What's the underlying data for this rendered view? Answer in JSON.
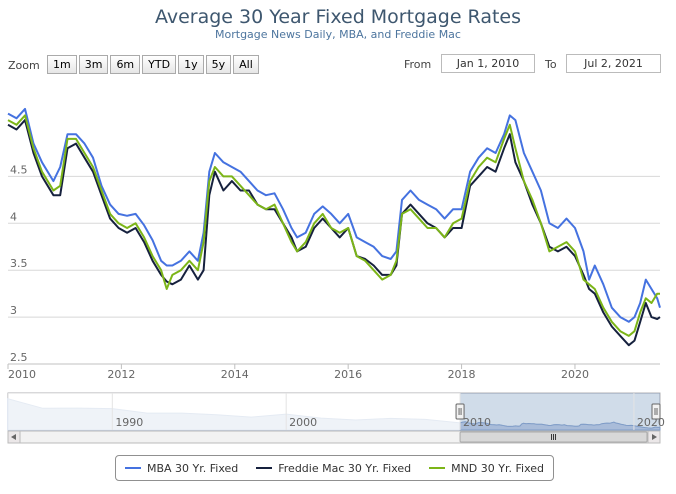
{
  "chart_data": {
    "type": "line",
    "title": "Average 30 Year Fixed Mortgage Rates",
    "subtitle": "Mortgage News Daily, MBA, and Freddie Mac",
    "xlabel": "",
    "ylabel": "",
    "xlim": [
      2010.0,
      2021.5
    ],
    "ylim": [
      2.5,
      5.4
    ],
    "grid": "y",
    "x_ticks": [
      {
        "v": 2010,
        "label": "2010"
      },
      {
        "v": 2012,
        "label": "2012"
      },
      {
        "v": 2014,
        "label": "2014"
      },
      {
        "v": 2016,
        "label": "2016"
      },
      {
        "v": 2018,
        "label": "2018"
      },
      {
        "v": 2020,
        "label": "2020"
      }
    ],
    "y_ticks": [
      {
        "v": 2.5,
        "label": "2.5"
      },
      {
        "v": 3.0,
        "label": "3"
      },
      {
        "v": 3.5,
        "label": "3.5"
      },
      {
        "v": 4.0,
        "label": "4"
      },
      {
        "v": 4.5,
        "label": "4.5"
      }
    ],
    "legend_position": "bottom",
    "series": [
      {
        "name": "MBA 30 Yr. Fixed",
        "color": "#4572e0",
        "points": [
          [
            2010.0,
            5.17
          ],
          [
            2010.15,
            5.12
          ],
          [
            2010.3,
            5.22
          ],
          [
            2010.45,
            4.85
          ],
          [
            2010.6,
            4.65
          ],
          [
            2010.8,
            4.45
          ],
          [
            2010.92,
            4.6
          ],
          [
            2011.05,
            4.95
          ],
          [
            2011.2,
            4.95
          ],
          [
            2011.35,
            4.85
          ],
          [
            2011.5,
            4.7
          ],
          [
            2011.65,
            4.4
          ],
          [
            2011.8,
            4.2
          ],
          [
            2011.95,
            4.1
          ],
          [
            2012.1,
            4.08
          ],
          [
            2012.25,
            4.1
          ],
          [
            2012.4,
            3.98
          ],
          [
            2012.55,
            3.82
          ],
          [
            2012.7,
            3.6
          ],
          [
            2012.8,
            3.55
          ],
          [
            2012.9,
            3.55
          ],
          [
            2013.05,
            3.6
          ],
          [
            2013.2,
            3.7
          ],
          [
            2013.35,
            3.6
          ],
          [
            2013.45,
            3.9
          ],
          [
            2013.55,
            4.55
          ],
          [
            2013.65,
            4.75
          ],
          [
            2013.8,
            4.65
          ],
          [
            2013.95,
            4.6
          ],
          [
            2014.1,
            4.55
          ],
          [
            2014.25,
            4.45
          ],
          [
            2014.4,
            4.35
          ],
          [
            2014.55,
            4.3
          ],
          [
            2014.7,
            4.32
          ],
          [
            2014.85,
            4.15
          ],
          [
            2015.0,
            3.95
          ],
          [
            2015.1,
            3.85
          ],
          [
            2015.25,
            3.9
          ],
          [
            2015.4,
            4.1
          ],
          [
            2015.55,
            4.18
          ],
          [
            2015.7,
            4.1
          ],
          [
            2015.85,
            4.0
          ],
          [
            2016.0,
            4.1
          ],
          [
            2016.15,
            3.85
          ],
          [
            2016.3,
            3.8
          ],
          [
            2016.45,
            3.75
          ],
          [
            2016.6,
            3.65
          ],
          [
            2016.75,
            3.62
          ],
          [
            2016.85,
            3.7
          ],
          [
            2016.95,
            4.25
          ],
          [
            2017.1,
            4.35
          ],
          [
            2017.25,
            4.25
          ],
          [
            2017.4,
            4.2
          ],
          [
            2017.55,
            4.15
          ],
          [
            2017.7,
            4.05
          ],
          [
            2017.85,
            4.15
          ],
          [
            2018.0,
            4.15
          ],
          [
            2018.15,
            4.55
          ],
          [
            2018.3,
            4.7
          ],
          [
            2018.45,
            4.8
          ],
          [
            2018.6,
            4.75
          ],
          [
            2018.75,
            4.95
          ],
          [
            2018.85,
            5.15
          ],
          [
            2018.95,
            5.1
          ],
          [
            2019.1,
            4.75
          ],
          [
            2019.25,
            4.55
          ],
          [
            2019.4,
            4.35
          ],
          [
            2019.55,
            4.0
          ],
          [
            2019.7,
            3.95
          ],
          [
            2019.85,
            4.05
          ],
          [
            2020.0,
            3.95
          ],
          [
            2020.15,
            3.7
          ],
          [
            2020.25,
            3.4
          ],
          [
            2020.35,
            3.55
          ],
          [
            2020.5,
            3.35
          ],
          [
            2020.65,
            3.1
          ],
          [
            2020.8,
            3.0
          ],
          [
            2020.95,
            2.95
          ],
          [
            2021.05,
            3.0
          ],
          [
            2021.15,
            3.15
          ],
          [
            2021.25,
            3.4
          ],
          [
            2021.35,
            3.3
          ],
          [
            2021.45,
            3.2
          ],
          [
            2021.5,
            3.1
          ]
        ]
      },
      {
        "name": "Freddie Mac 30 Yr. Fixed",
        "color": "#16213e",
        "points": [
          [
            2010.0,
            5.05
          ],
          [
            2010.15,
            5.0
          ],
          [
            2010.3,
            5.1
          ],
          [
            2010.45,
            4.75
          ],
          [
            2010.6,
            4.5
          ],
          [
            2010.8,
            4.3
          ],
          [
            2010.92,
            4.3
          ],
          [
            2011.05,
            4.8
          ],
          [
            2011.2,
            4.85
          ],
          [
            2011.35,
            4.7
          ],
          [
            2011.5,
            4.55
          ],
          [
            2011.65,
            4.3
          ],
          [
            2011.8,
            4.05
          ],
          [
            2011.95,
            3.95
          ],
          [
            2012.1,
            3.9
          ],
          [
            2012.25,
            3.95
          ],
          [
            2012.4,
            3.8
          ],
          [
            2012.55,
            3.6
          ],
          [
            2012.7,
            3.45
          ],
          [
            2012.8,
            3.38
          ],
          [
            2012.9,
            3.35
          ],
          [
            2013.05,
            3.4
          ],
          [
            2013.2,
            3.55
          ],
          [
            2013.35,
            3.4
          ],
          [
            2013.45,
            3.5
          ],
          [
            2013.55,
            4.3
          ],
          [
            2013.65,
            4.55
          ],
          [
            2013.8,
            4.35
          ],
          [
            2013.95,
            4.45
          ],
          [
            2014.1,
            4.35
          ],
          [
            2014.25,
            4.35
          ],
          [
            2014.4,
            4.2
          ],
          [
            2014.55,
            4.15
          ],
          [
            2014.7,
            4.15
          ],
          [
            2014.85,
            4.0
          ],
          [
            2015.0,
            3.85
          ],
          [
            2015.1,
            3.7
          ],
          [
            2015.25,
            3.75
          ],
          [
            2015.4,
            3.95
          ],
          [
            2015.55,
            4.05
          ],
          [
            2015.7,
            3.95
          ],
          [
            2015.85,
            3.85
          ],
          [
            2016.0,
            3.95
          ],
          [
            2016.15,
            3.65
          ],
          [
            2016.3,
            3.62
          ],
          [
            2016.45,
            3.55
          ],
          [
            2016.6,
            3.45
          ],
          [
            2016.75,
            3.45
          ],
          [
            2016.85,
            3.55
          ],
          [
            2016.95,
            4.1
          ],
          [
            2017.1,
            4.2
          ],
          [
            2017.25,
            4.1
          ],
          [
            2017.4,
            4.0
          ],
          [
            2017.55,
            3.95
          ],
          [
            2017.7,
            3.85
          ],
          [
            2017.85,
            3.95
          ],
          [
            2018.0,
            3.95
          ],
          [
            2018.15,
            4.4
          ],
          [
            2018.3,
            4.5
          ],
          [
            2018.45,
            4.6
          ],
          [
            2018.6,
            4.55
          ],
          [
            2018.75,
            4.8
          ],
          [
            2018.85,
            4.95
          ],
          [
            2018.95,
            4.65
          ],
          [
            2019.1,
            4.45
          ],
          [
            2019.25,
            4.2
          ],
          [
            2019.4,
            4.0
          ],
          [
            2019.55,
            3.75
          ],
          [
            2019.7,
            3.7
          ],
          [
            2019.85,
            3.75
          ],
          [
            2020.0,
            3.65
          ],
          [
            2020.15,
            3.45
          ],
          [
            2020.25,
            3.3
          ],
          [
            2020.35,
            3.25
          ],
          [
            2020.5,
            3.05
          ],
          [
            2020.65,
            2.9
          ],
          [
            2020.8,
            2.8
          ],
          [
            2020.95,
            2.7
          ],
          [
            2021.05,
            2.75
          ],
          [
            2021.15,
            2.95
          ],
          [
            2021.25,
            3.15
          ],
          [
            2021.35,
            3.0
          ],
          [
            2021.45,
            2.98
          ],
          [
            2021.5,
            3.0
          ]
        ]
      },
      {
        "name": "MND 30 Yr. Fixed",
        "color": "#7cb518",
        "points": [
          [
            2010.0,
            5.1
          ],
          [
            2010.15,
            5.05
          ],
          [
            2010.3,
            5.15
          ],
          [
            2010.45,
            4.8
          ],
          [
            2010.6,
            4.55
          ],
          [
            2010.8,
            4.35
          ],
          [
            2010.92,
            4.4
          ],
          [
            2011.05,
            4.9
          ],
          [
            2011.2,
            4.9
          ],
          [
            2011.35,
            4.75
          ],
          [
            2011.5,
            4.6
          ],
          [
            2011.65,
            4.35
          ],
          [
            2011.8,
            4.1
          ],
          [
            2011.95,
            4.0
          ],
          [
            2012.1,
            3.95
          ],
          [
            2012.25,
            4.0
          ],
          [
            2012.4,
            3.85
          ],
          [
            2012.55,
            3.65
          ],
          [
            2012.7,
            3.5
          ],
          [
            2012.8,
            3.3
          ],
          [
            2012.9,
            3.45
          ],
          [
            2013.05,
            3.5
          ],
          [
            2013.2,
            3.6
          ],
          [
            2013.35,
            3.5
          ],
          [
            2013.45,
            3.8
          ],
          [
            2013.55,
            4.45
          ],
          [
            2013.65,
            4.6
          ],
          [
            2013.8,
            4.5
          ],
          [
            2013.95,
            4.5
          ],
          [
            2014.1,
            4.4
          ],
          [
            2014.25,
            4.3
          ],
          [
            2014.4,
            4.2
          ],
          [
            2014.55,
            4.15
          ],
          [
            2014.7,
            4.2
          ],
          [
            2014.85,
            4.0
          ],
          [
            2015.0,
            3.8
          ],
          [
            2015.1,
            3.7
          ],
          [
            2015.25,
            3.8
          ],
          [
            2015.4,
            4.0
          ],
          [
            2015.55,
            4.1
          ],
          [
            2015.7,
            3.95
          ],
          [
            2015.85,
            3.9
          ],
          [
            2016.0,
            3.95
          ],
          [
            2016.15,
            3.65
          ],
          [
            2016.3,
            3.6
          ],
          [
            2016.45,
            3.5
          ],
          [
            2016.6,
            3.4
          ],
          [
            2016.75,
            3.45
          ],
          [
            2016.85,
            3.6
          ],
          [
            2016.95,
            4.1
          ],
          [
            2017.1,
            4.15
          ],
          [
            2017.25,
            4.05
          ],
          [
            2017.4,
            3.95
          ],
          [
            2017.55,
            3.95
          ],
          [
            2017.7,
            3.85
          ],
          [
            2017.85,
            4.0
          ],
          [
            2018.0,
            4.05
          ],
          [
            2018.15,
            4.45
          ],
          [
            2018.3,
            4.6
          ],
          [
            2018.45,
            4.7
          ],
          [
            2018.6,
            4.65
          ],
          [
            2018.75,
            4.9
          ],
          [
            2018.85,
            5.05
          ],
          [
            2018.95,
            4.8
          ],
          [
            2019.1,
            4.45
          ],
          [
            2019.25,
            4.25
          ],
          [
            2019.4,
            4.0
          ],
          [
            2019.55,
            3.7
          ],
          [
            2019.7,
            3.75
          ],
          [
            2019.85,
            3.8
          ],
          [
            2020.0,
            3.7
          ],
          [
            2020.15,
            3.4
          ],
          [
            2020.25,
            3.35
          ],
          [
            2020.35,
            3.3
          ],
          [
            2020.5,
            3.1
          ],
          [
            2020.65,
            2.95
          ],
          [
            2020.8,
            2.85
          ],
          [
            2020.95,
            2.8
          ],
          [
            2021.05,
            2.85
          ],
          [
            2021.15,
            3.05
          ],
          [
            2021.25,
            3.2
          ],
          [
            2021.35,
            3.15
          ],
          [
            2021.45,
            3.25
          ],
          [
            2021.5,
            3.25
          ]
        ]
      }
    ]
  },
  "controls": {
    "zoom_label": "Zoom",
    "zoom_buttons": [
      "1m",
      "3m",
      "6m",
      "YTD",
      "1y",
      "5y",
      "All"
    ],
    "from_label": "From",
    "from_value": "Jan 1, 2010",
    "to_label": "To",
    "to_value": "Jul 2, 2021"
  },
  "navigator": {
    "xlim": [
      1984.0,
      2021.5
    ],
    "selected": [
      2010.0,
      2021.5
    ],
    "ticks": [
      {
        "v": 1990,
        "label": "1990"
      },
      {
        "v": 2000,
        "label": "2000"
      },
      {
        "v": 2010,
        "label": "2010"
      },
      {
        "v": 2020,
        "label": "2020"
      }
    ],
    "scroll_left_icon": "left-arrow-icon",
    "scroll_right_icon": "right-arrow-icon",
    "grip_icon": "grip-icon",
    "handle_icon": "drag-handle-icon"
  }
}
